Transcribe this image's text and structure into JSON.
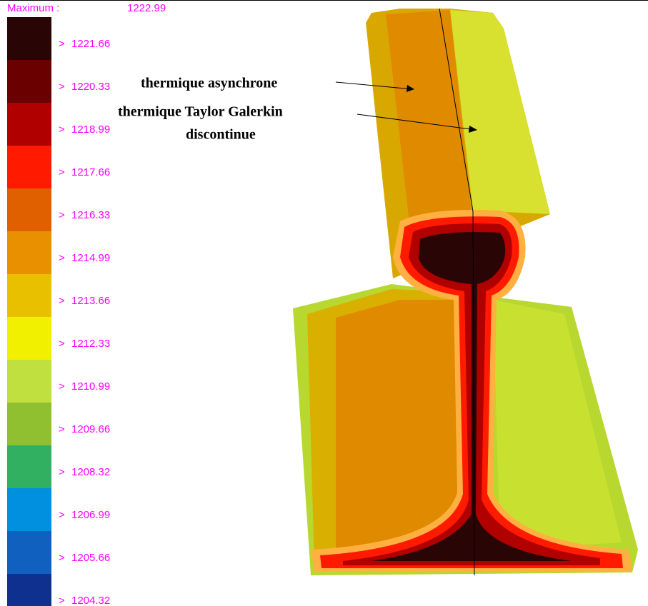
{
  "legend": {
    "max_label": "Maximum :",
    "max_value": 1222.99,
    "items": [
      {
        "marker": ">",
        "value": 1221.66,
        "color": "#2a0505"
      },
      {
        "marker": ">",
        "value": 1220.33,
        "color": "#6a0000"
      },
      {
        "marker": ">",
        "value": 1218.99,
        "color": "#b00000"
      },
      {
        "marker": ">",
        "value": 1217.66,
        "color": "#ff1a00"
      },
      {
        "marker": ">",
        "value": 1216.33,
        "color": "#e06000"
      },
      {
        "marker": ">",
        "value": 1214.99,
        "color": "#e89000"
      },
      {
        "marker": ">",
        "value": 1213.66,
        "color": "#e8c000"
      },
      {
        "marker": ">",
        "value": 1212.33,
        "color": "#f0f000"
      },
      {
        "marker": ">",
        "value": 1210.99,
        "color": "#c0e040"
      },
      {
        "marker": ">",
        "value": 1209.66,
        "color": "#90c030"
      },
      {
        "marker": ">",
        "value": 1208.32,
        "color": "#30b060"
      },
      {
        "marker": ">",
        "value": 1206.99,
        "color": "#0090e0"
      },
      {
        "marker": ">",
        "value": 1205.66,
        "color": "#1060c0"
      },
      {
        "marker": ">",
        "value": 1204.32,
        "color": "#103090"
      }
    ]
  },
  "annotations": {
    "async": "thermique asynchrone",
    "tg_line1": "thermique Taylor Galerkin",
    "tg_line2": "discontinue"
  }
}
